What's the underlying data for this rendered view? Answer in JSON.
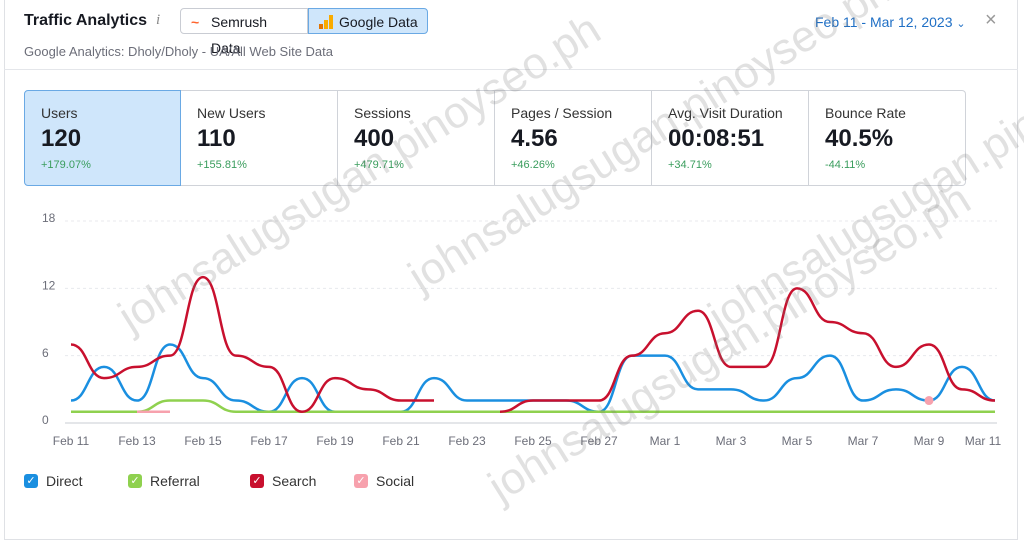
{
  "header": {
    "title": "Traffic Analytics",
    "info_icon": "i",
    "tabs": [
      "Semrush Data",
      "Google Data"
    ],
    "date_range": "Feb 11 - Mar 12, 2023",
    "close": "×",
    "subtitle": "Google Analytics: Dholy/Dholy - UA/All Web Site Data"
  },
  "metrics": [
    {
      "label": "Users",
      "value": "120",
      "change": "+179.07%"
    },
    {
      "label": "New Users",
      "value": "110",
      "change": "+155.81%"
    },
    {
      "label": "Sessions",
      "value": "400",
      "change": "+479.71%"
    },
    {
      "label": "Pages / Session",
      "value": "4.56",
      "change": "+46.26%"
    },
    {
      "label": "Avg. Visit Duration",
      "value": "00:08:51",
      "change": "+34.71%"
    },
    {
      "label": "Bounce Rate",
      "value": "40.5%",
      "change": "-44.11%"
    }
  ],
  "watermark": "johnsalugsugan.pinoyseo.ph",
  "chart_data": {
    "type": "line",
    "categories": [
      "Feb 11",
      null,
      "Feb 13",
      null,
      "Feb 15",
      null,
      "Feb 17",
      null,
      "Feb 19",
      null,
      "Feb 21",
      null,
      "Feb 23",
      null,
      "Feb 25",
      null,
      "Feb 27",
      null,
      "Mar 1",
      null,
      "Mar 3",
      null,
      "Mar 5",
      null,
      "Mar 7",
      null,
      "Mar 9",
      null,
      "Mar 11"
    ],
    "series": [
      {
        "name": "Direct",
        "color": "#1a8fe0",
        "values": [
          2,
          5,
          2,
          7,
          4,
          2,
          1,
          4,
          1,
          1,
          1,
          4,
          2,
          2,
          2,
          2,
          1,
          6,
          6,
          3,
          3,
          2,
          4,
          6,
          2,
          3,
          2,
          5,
          2
        ]
      },
      {
        "name": "Referral",
        "color": "#8fd14f",
        "values": [
          1,
          1,
          1,
          2,
          2,
          1,
          1,
          1,
          1,
          1,
          1,
          1,
          1,
          1,
          1,
          1,
          1,
          1,
          1,
          1,
          1,
          1,
          1,
          1,
          1,
          1,
          1,
          1,
          1
        ]
      },
      {
        "name": "Search",
        "color": "#c8102e",
        "values": [
          7,
          4,
          5,
          6,
          13,
          6,
          5,
          1,
          4,
          3,
          2,
          2,
          null,
          1,
          2,
          2,
          2,
          6,
          8,
          10,
          5,
          5,
          12,
          9,
          8,
          5,
          7,
          3,
          2
        ]
      },
      {
        "name": "Social",
        "color": "#f7a1ad",
        "values": [
          null,
          null,
          1,
          1,
          null,
          null,
          null,
          null,
          null,
          null,
          null,
          null,
          null,
          null,
          null,
          null,
          null,
          null,
          null,
          null,
          null,
          null,
          null,
          null,
          null,
          null,
          2,
          null,
          null
        ]
      }
    ],
    "ylim": [
      0,
      18
    ],
    "yticks": [
      0,
      6,
      12,
      18
    ],
    "grid": true,
    "legend": "bottom-left"
  }
}
